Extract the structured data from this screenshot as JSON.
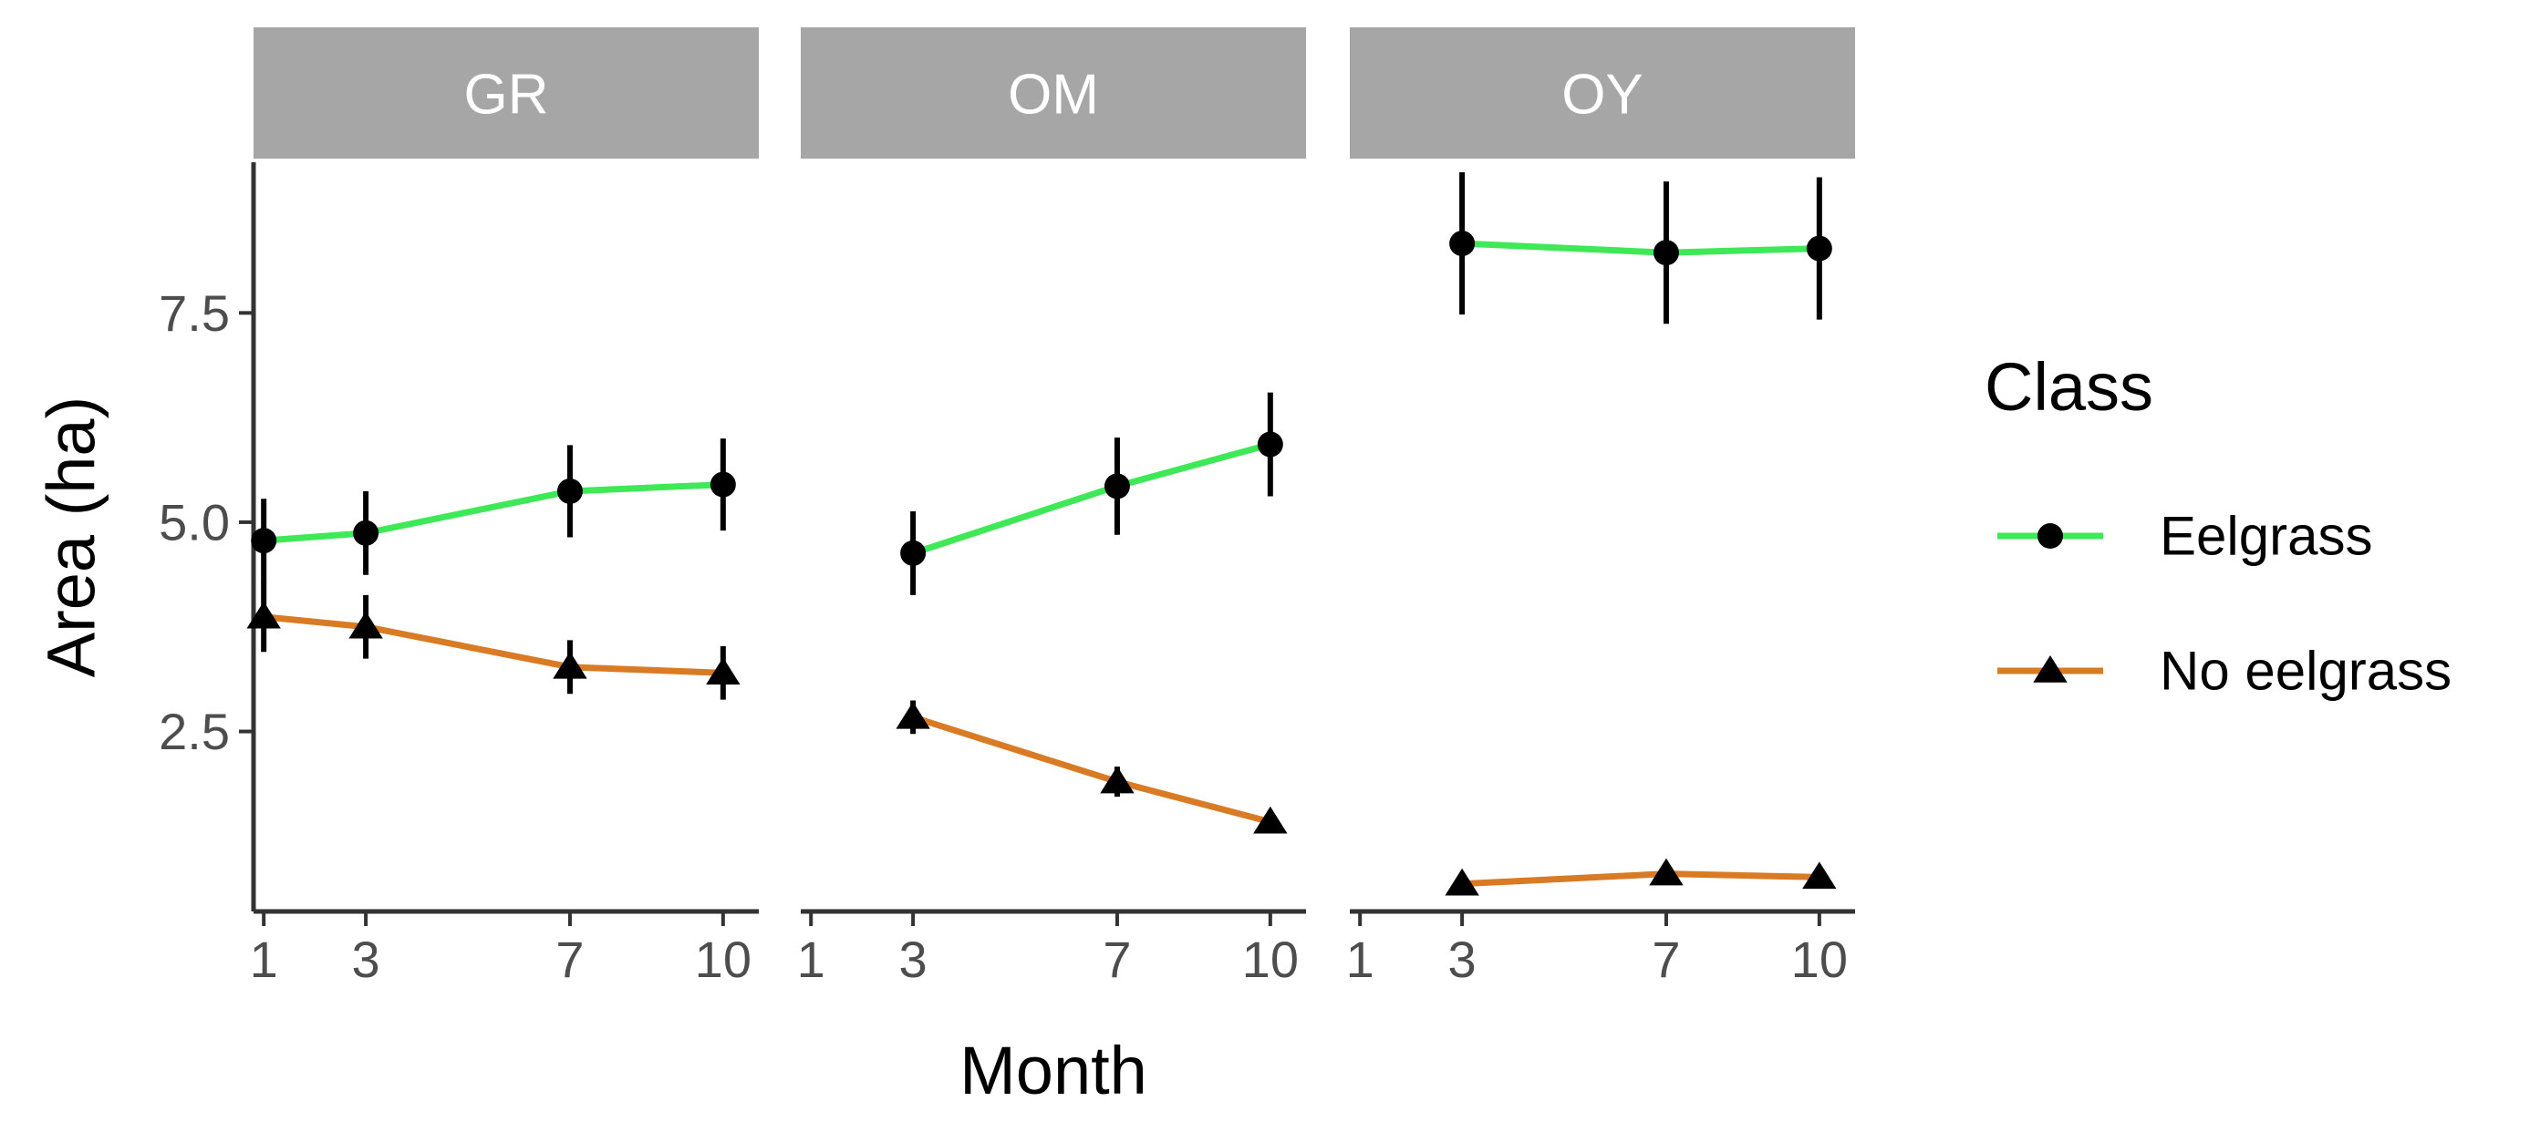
{
  "chart_data": {
    "type": "line",
    "title": "",
    "xlabel": "Month",
    "ylabel": "Area (ha)",
    "x_ticks": [
      1,
      3,
      7,
      10
    ],
    "x_tick_labels": [
      "1",
      "3",
      "7",
      "10"
    ],
    "xlim": [
      0.8,
      10.7
    ],
    "y_ticks": [
      2.5,
      5.0,
      7.5
    ],
    "y_tick_labels": [
      "2.5",
      "5.0",
      "7.5"
    ],
    "ylim": [
      0.35,
      9.3
    ],
    "grid": false,
    "legend": {
      "title": "Class",
      "position": "right",
      "entries": [
        {
          "label": "Eelgrass",
          "color": "#3ee857",
          "marker": "circle"
        },
        {
          "label": "No eelgrass",
          "color": "#d97b25",
          "marker": "triangle"
        }
      ]
    },
    "colors": {
      "strip_bg": "#a6a6a6",
      "axis": "#333333",
      "errorbar": "#000000",
      "marker": "#000000"
    },
    "panels": [
      {
        "label": "GR",
        "series": [
          {
            "name": "Eelgrass",
            "x": [
              1,
              3,
              7,
              10
            ],
            "y": [
              4.78,
              4.87,
              5.37,
              5.45
            ],
            "err": [
              0.5,
              0.5,
              0.55,
              0.55
            ]
          },
          {
            "name": "No eelgrass",
            "x": [
              1,
              3,
              7,
              10
            ],
            "y": [
              3.87,
              3.75,
              3.27,
              3.2
            ],
            "err": [
              0.42,
              0.38,
              0.32,
              0.32
            ]
          }
        ]
      },
      {
        "label": "OM",
        "series": [
          {
            "name": "Eelgrass",
            "x": [
              3,
              7,
              10
            ],
            "y": [
              4.63,
              5.43,
              5.93
            ],
            "err": [
              0.5,
              0.58,
              0.62
            ]
          },
          {
            "name": "No eelgrass",
            "x": [
              3,
              7,
              10
            ],
            "y": [
              2.67,
              1.9,
              1.42
            ],
            "err": [
              0.2,
              0.18,
              0.12
            ]
          }
        ]
      },
      {
        "label": "OY",
        "series": [
          {
            "name": "Eelgrass",
            "x": [
              3,
              7,
              10
            ],
            "y": [
              8.33,
              8.22,
              8.27
            ],
            "err": [
              0.85,
              0.85,
              0.85
            ]
          },
          {
            "name": "No eelgrass",
            "x": [
              3,
              7,
              10
            ],
            "y": [
              0.68,
              0.8,
              0.76
            ],
            "err": [
              0.05,
              0.05,
              0.05
            ]
          }
        ]
      }
    ]
  }
}
